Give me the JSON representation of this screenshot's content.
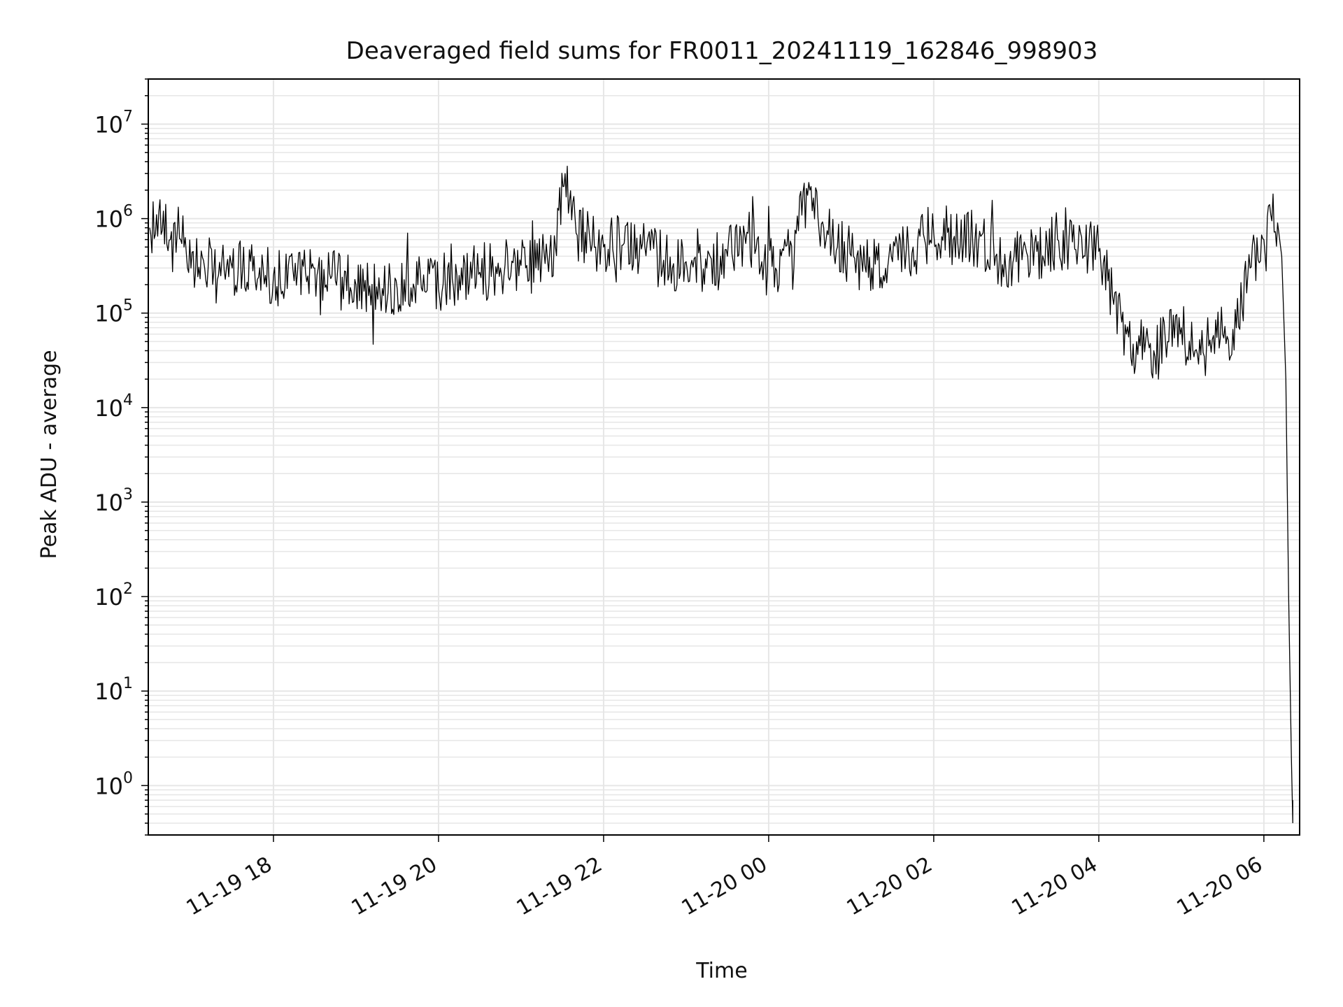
{
  "chart_data": {
    "type": "line",
    "title": "Deaveraged field sums for FR0011_20241119_162846_998903",
    "xlabel": "Time",
    "ylabel": "Peak ADU - average",
    "yscale": "log",
    "grid": true,
    "line_color": "#000000",
    "xlim": [
      "2024-11-19 16:29",
      "2024-11-20 06:26"
    ],
    "ylim": [
      0.3,
      30000000
    ],
    "x_ticks": [
      {
        "value": "2024-11-19 18:00",
        "label": "11-19 18"
      },
      {
        "value": "2024-11-19 20:00",
        "label": "11-19 20"
      },
      {
        "value": "2024-11-19 22:00",
        "label": "11-19 22"
      },
      {
        "value": "2024-11-20 00:00",
        "label": "11-20 00"
      },
      {
        "value": "2024-11-20 02:00",
        "label": "11-20 02"
      },
      {
        "value": "2024-11-20 04:00",
        "label": "11-20 04"
      },
      {
        "value": "2024-11-20 06:00",
        "label": "11-20 06"
      }
    ],
    "y_ticks": [
      {
        "value": 1,
        "base": "10",
        "exp": "0"
      },
      {
        "value": 10,
        "base": "10",
        "exp": "1"
      },
      {
        "value": 100,
        "base": "10",
        "exp": "2"
      },
      {
        "value": 1000,
        "base": "10",
        "exp": "3"
      },
      {
        "value": 10000,
        "base": "10",
        "exp": "4"
      },
      {
        "value": 100000,
        "base": "10",
        "exp": "5"
      },
      {
        "value": 1000000,
        "base": "10",
        "exp": "6"
      },
      {
        "value": 10000000,
        "base": "10",
        "exp": "7"
      }
    ],
    "series": [
      {
        "x": [
          "2024-11-19 16:30",
          "2024-11-19 16:35",
          "2024-11-19 16:40",
          "2024-11-19 16:45",
          "2024-11-19 16:50",
          "2024-11-19 16:55",
          "2024-11-19 17:00",
          "2024-11-19 17:10",
          "2024-11-19 17:20",
          "2024-11-19 17:30",
          "2024-11-19 17:45",
          "2024-11-19 18:00",
          "2024-11-19 18:15",
          "2024-11-19 18:30",
          "2024-11-19 18:45",
          "2024-11-19 19:00",
          "2024-11-19 19:15",
          "2024-11-19 19:30",
          "2024-11-19 19:45",
          "2024-11-19 20:00",
          "2024-11-19 20:15",
          "2024-11-19 20:30",
          "2024-11-19 20:45",
          "2024-11-19 21:00",
          "2024-11-19 21:15",
          "2024-11-19 21:25",
          "2024-11-19 21:32",
          "2024-11-19 21:40",
          "2024-11-19 21:50",
          "2024-11-19 22:00",
          "2024-11-19 22:15",
          "2024-11-19 22:30",
          "2024-11-19 22:50",
          "2024-11-19 23:00",
          "2024-11-19 23:15",
          "2024-11-19 23:30",
          "2024-11-19 23:45",
          "2024-11-19 23:55",
          "2024-11-20 00:05",
          "2024-11-20 00:15",
          "2024-11-20 00:30",
          "2024-11-20 00:40",
          "2024-11-20 00:50",
          "2024-11-20 01:00",
          "2024-11-20 01:15",
          "2024-11-20 01:30",
          "2024-11-20 01:45",
          "2024-11-20 02:00",
          "2024-11-20 02:15",
          "2024-11-20 02:30",
          "2024-11-20 02:45",
          "2024-11-20 03:00",
          "2024-11-20 03:15",
          "2024-11-20 03:30",
          "2024-11-20 03:45",
          "2024-11-20 04:00",
          "2024-11-20 04:10",
          "2024-11-20 04:20",
          "2024-11-20 04:30",
          "2024-11-20 04:40",
          "2024-11-20 04:50",
          "2024-11-20 05:00",
          "2024-11-20 05:10",
          "2024-11-20 05:20",
          "2024-11-20 05:30",
          "2024-11-20 05:40",
          "2024-11-20 05:50",
          "2024-11-20 06:00",
          "2024-11-20 06:05",
          "2024-11-20 06:10",
          "2024-11-20 06:13",
          "2024-11-20 06:16",
          "2024-11-20 06:18",
          "2024-11-20 06:20",
          "2024-11-20 06:21"
        ],
        "y": [
          800000,
          1100000,
          1200000,
          600000,
          700000,
          500000,
          300000,
          300000,
          250000,
          300000,
          280000,
          250000,
          220000,
          300000,
          220000,
          200000,
          190000,
          180000,
          200000,
          180000,
          250000,
          270000,
          300000,
          320000,
          350000,
          500000,
          3000000,
          700000,
          600000,
          500000,
          550000,
          500000,
          300000,
          350000,
          300000,
          400000,
          700000,
          350000,
          300000,
          400000,
          2000000,
          800000,
          500000,
          400000,
          300000,
          350000,
          500000,
          700000,
          650000,
          600000,
          400000,
          350000,
          450000,
          600000,
          500000,
          450000,
          150000,
          60000,
          45000,
          40000,
          50000,
          70000,
          40000,
          45000,
          60000,
          70000,
          300000,
          600000,
          1100000,
          900000,
          400000,
          20000,
          100,
          2,
          0.4
        ]
      }
    ]
  }
}
